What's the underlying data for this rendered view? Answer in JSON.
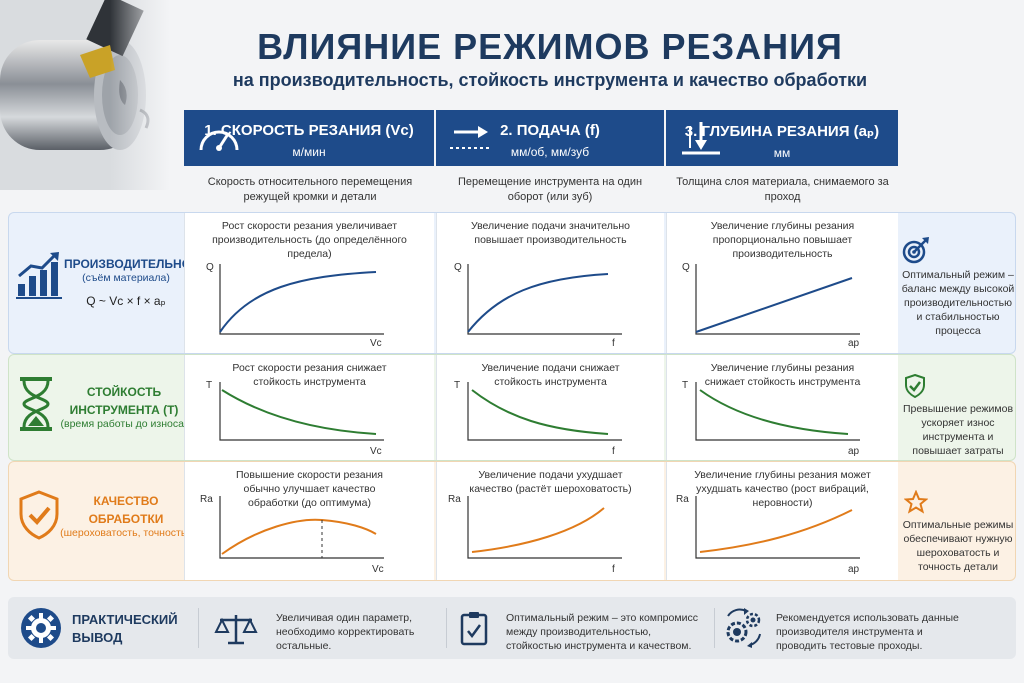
{
  "header": {
    "title": "ВЛИЯНИЕ РЕЖИМОВ РЕЗАНИЯ",
    "subtitle": "на производительность, стойкость инструмента и качество обработки"
  },
  "columns": [
    {
      "title": "1. СКОРОСТЬ РЕЗАНИЯ (Vc)",
      "unit": "м/мин",
      "desc": "Скорость относительного перемещения режущей кромки и детали",
      "icon": "speedometer-icon"
    },
    {
      "title": "2. ПОДАЧА (f)",
      "unit": "мм/об, мм/зуб",
      "desc": "Перемещение инструмента на один оборот (или зуб)",
      "icon": "feed-arrow-icon"
    },
    {
      "title": "3. ГЛУБИНА РЕЗАНИЯ (aₚ)",
      "unit": "мм",
      "desc": "Толщина слоя материала, снимаемого за проход",
      "icon": "depth-arrow-icon"
    }
  ],
  "rows": {
    "productivity": {
      "title": "ПРОИЗВОДИТЕЛЬНОСТЬ",
      "sub": "(съём материала)",
      "formula": "Q ~ Vc × f × aₚ",
      "color": "#1e4b8a",
      "icon": "bar-chart-growth-icon",
      "cells": [
        "Рост скорости резания увеличивает производительность (до определённого предела)",
        "Увеличение подачи значительно повышает производительность",
        "Увеличение глубины резания пропорционально повышает производительность"
      ],
      "note": "Оптимальный режим – баланс между высокой производительностью и стабильностью процесса",
      "note_icon": "target-icon"
    },
    "tool_life": {
      "title": "СТОЙКОСТЬ ИНСТРУМЕНТА (T)",
      "sub": "(время работы до износа)",
      "color": "#2e7d32",
      "icon": "hourglass-icon",
      "cells": [
        "Рост скорости резания снижает стойкость инструмента",
        "Увеличение подачи снижает стойкость инструмента",
        "Увеличение глубины резания снижает стойкость инструмента"
      ],
      "note": "Превышение режимов ускоряет износ инструмента и повышает затраты",
      "note_icon": "shield-check-icon"
    },
    "quality": {
      "title": "КАЧЕСТВО ОБРАБОТКИ",
      "sub": "(шероховатость, точность)",
      "color": "#e07b1a",
      "icon": "shield-check-icon",
      "cells": [
        "Повышение скорости резания обычно улучшает качество обработки (до оптимума)",
        "Увеличение подачи ухудшает качество (растёт шероховатость)",
        "Увеличение глубины резания может ухудшать качество (рост вибраций, неровности)"
      ],
      "note": "Оптимальные режимы обеспечивают нужную шероховатость и точность детали",
      "note_icon": "star-icon"
    }
  },
  "charts": {
    "prod": {
      "ylabel": "Q",
      "xlabels": [
        "Vc",
        "f",
        "ap"
      ]
    },
    "life": {
      "ylabel": "T",
      "xlabels": [
        "Vc",
        "f",
        "ap"
      ]
    },
    "qual": {
      "ylabel": "Ra",
      "xlabels": [
        "Vc",
        "f",
        "ap"
      ]
    }
  },
  "bottom": {
    "title": "ПРАКТИЧЕСКИЙ ВЫВОД",
    "icon": "gear-icon",
    "items": [
      {
        "icon": "scales-icon",
        "text": "Увеличивая один параметр, необходимо корректировать остальные."
      },
      {
        "icon": "clipboard-check-icon",
        "text": "Оптимальный режим – это компромисс между производительностью, стойкостью инструмента и качеством."
      },
      {
        "icon": "gears-arrows-icon",
        "text": "Рекомендуется использовать данные производителя инструмента и проводить тестовые проходы."
      }
    ]
  },
  "colors": {
    "navy": "#1e4b8a",
    "green": "#2e7d32",
    "orange": "#e07b1a",
    "curve_blue": "#1e4b8a"
  }
}
